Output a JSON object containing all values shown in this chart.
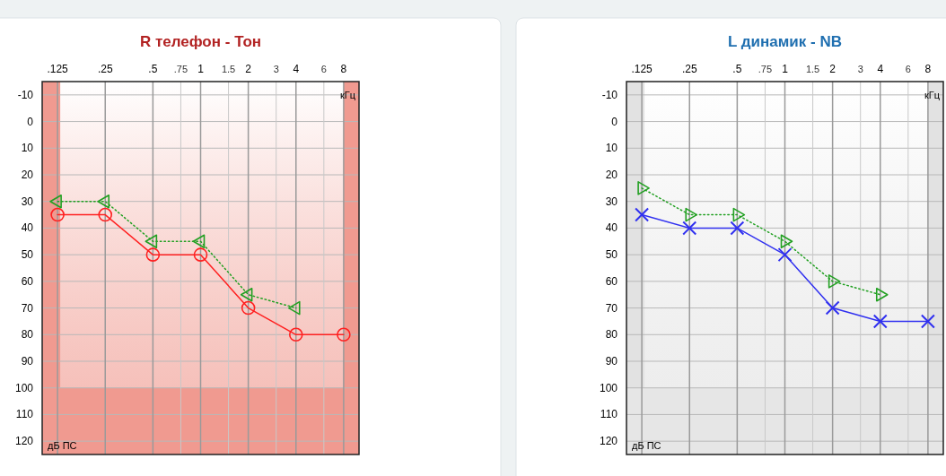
{
  "chart_data": [
    {
      "type": "line",
      "title": "R телефон - Тон",
      "xlabel": "кГц",
      "ylabel": "дБ ПС",
      "log": "x",
      "xlim": [
        0.1,
        10
      ],
      "xticks": [
        {
          "value": 0.125,
          "label": ".125"
        },
        {
          "value": 0.25,
          "label": ".25"
        },
        {
          "value": 0.5,
          "label": ".5"
        },
        {
          "value": 0.75,
          "label": ".75"
        },
        1,
        1.5,
        2,
        3,
        4,
        6,
        8
      ],
      "ylim": [
        125,
        -15
      ],
      "yticks": [
        -10,
        0,
        10,
        20,
        30,
        40,
        50,
        60,
        70,
        80,
        90,
        100,
        110,
        120
      ],
      "grid": true,
      "bands": [
        {
          "axis": "x",
          "from": 0.1,
          "to": 0.13,
          "color": "#f09a90"
        },
        {
          "axis": "x",
          "from": 8,
          "to": 10,
          "color": "#f09a90"
        },
        {
          "axis": "y",
          "from": 100,
          "to": 125,
          "color": "#f09a90"
        }
      ],
      "series": [
        {
          "x": [
            0.125,
            0.25,
            0.5,
            1,
            2,
            4,
            8
          ],
          "values": [
            35,
            35,
            50,
            50,
            70,
            80,
            80
          ],
          "color": "#ff2020",
          "marker": "circle",
          "line_style": "solid"
        },
        {
          "x": [
            0.125,
            0.25,
            0.5,
            1,
            2,
            4
          ],
          "values": [
            30,
            30,
            45,
            45,
            65,
            70
          ],
          "color": "#22a022",
          "marker": "triangle",
          "line_style": "dotted"
        }
      ]
    },
    {
      "type": "line",
      "title": "L динамик - NB",
      "xlabel": "кГц",
      "ylabel": "дБ ПС",
      "log": "x",
      "xlim": [
        0.1,
        10
      ],
      "xticks": [
        {
          "value": 0.125,
          "label": ".125"
        },
        {
          "value": 0.25,
          "label": ".25"
        },
        {
          "value": 0.5,
          "label": ".5"
        },
        {
          "value": 0.75,
          "label": ".75"
        },
        1,
        1.5,
        2,
        3,
        4,
        6,
        8
      ],
      "ylim": [
        125,
        -15
      ],
      "yticks": [
        -10,
        0,
        10,
        20,
        30,
        40,
        50,
        60,
        70,
        80,
        90,
        100,
        110,
        120
      ],
      "grid": true,
      "bands": [
        {
          "axis": "x",
          "from": 0.1,
          "to": 0.13,
          "color": "#e2e2e2"
        },
        {
          "axis": "x",
          "from": 8,
          "to": 10,
          "color": "#e2e2e2"
        },
        {
          "axis": "y",
          "from": 100,
          "to": 125,
          "color": "#e6e6e6"
        }
      ],
      "series": [
        {
          "x": [
            0.125,
            0.25,
            0.5,
            1,
            2,
            4,
            8
          ],
          "values": [
            35,
            40,
            40,
            50,
            70,
            75,
            75
          ],
          "color": "#3030f0",
          "marker": "cross",
          "line_style": "solid"
        },
        {
          "x": [
            0.125,
            0.25,
            0.5,
            1,
            2,
            4
          ],
          "values": [
            25,
            35,
            35,
            45,
            60,
            65
          ],
          "color": "#22a022",
          "marker": "triangle",
          "line_style": "dotted"
        }
      ]
    }
  ]
}
